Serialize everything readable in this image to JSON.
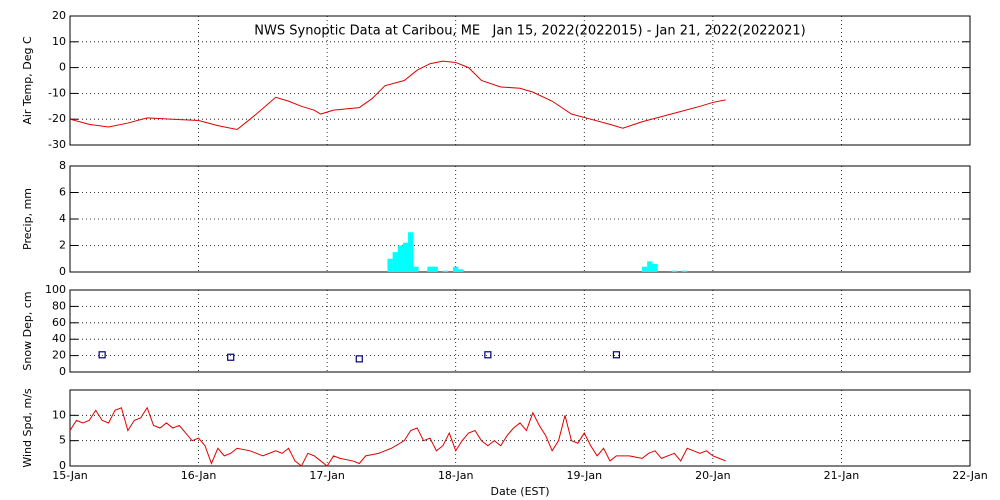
{
  "chart_data": [
    {
      "type": "line",
      "title": "NWS Synoptic Data at Caribou, ME   Jan 15, 2022(2022015) - Jan 21, 2022(2022021)",
      "ylabel": "Air Temp, Deg C",
      "color": "#e00000",
      "x": [
        15.0,
        15.15,
        15.3,
        15.45,
        15.6,
        15.8,
        16.0,
        16.15,
        16.3,
        16.45,
        16.6,
        16.7,
        16.8,
        16.9,
        16.95,
        17.05,
        17.25,
        17.35,
        17.45,
        17.6,
        17.7,
        17.8,
        17.9,
        18.0,
        18.1,
        18.2,
        18.35,
        18.5,
        18.6,
        18.75,
        18.9,
        19.05,
        19.2,
        19.3,
        19.45,
        19.6,
        19.75,
        19.9,
        20.0,
        20.1
      ],
      "values": [
        -20,
        -22,
        -23,
        -21.5,
        -19.5,
        -20,
        -20.5,
        -22.5,
        -24,
        -18,
        -11.5,
        -13,
        -15,
        -16.5,
        -18,
        -16.5,
        -15.5,
        -12,
        -7,
        -5,
        -1,
        1.5,
        2.5,
        2,
        0,
        -5,
        -7.5,
        -8,
        -9.5,
        -13,
        -18,
        -20,
        -22,
        -23.5,
        -21,
        -19,
        -17,
        -15,
        -13.5,
        -12.5
      ],
      "ylim": [
        -30,
        20
      ],
      "yticks": [
        -30,
        -20,
        -10,
        0,
        10,
        20
      ],
      "grid": true
    },
    {
      "type": "bar",
      "ylabel": "Precip, mm",
      "color": "#00ffff",
      "x": [
        17.49,
        17.53,
        17.57,
        17.61,
        17.65,
        17.69,
        17.8,
        17.84,
        17.92,
        18.0,
        18.04,
        19.47,
        19.51,
        19.55,
        19.7,
        19.78
      ],
      "values": [
        1.0,
        1.5,
        2.0,
        2.2,
        3.0,
        0.4,
        0.4,
        0.4,
        0.1,
        0.4,
        0.2,
        0.4,
        0.8,
        0.6,
        0.1,
        0.1
      ],
      "ylim": [
        0,
        8
      ],
      "yticks": [
        0,
        2,
        4,
        6,
        8
      ],
      "grid": true
    },
    {
      "type": "scatter",
      "ylabel": "Snow Dep, cm",
      "color": "#000080",
      "x": [
        15.25,
        16.25,
        17.25,
        18.25,
        19.25
      ],
      "values": [
        21,
        18,
        16,
        21,
        21
      ],
      "ylim": [
        0,
        100
      ],
      "yticks": [
        0,
        20,
        40,
        60,
        80,
        100
      ],
      "grid": true
    },
    {
      "type": "line",
      "ylabel": "Wind Spd, m/s",
      "xlabel": "Date (EST)",
      "color": "#e00000",
      "x": [
        15.0,
        15.05,
        15.1,
        15.15,
        15.2,
        15.25,
        15.3,
        15.35,
        15.4,
        15.45,
        15.5,
        15.55,
        15.6,
        15.65,
        15.7,
        15.75,
        15.8,
        15.85,
        15.9,
        15.95,
        16.0,
        16.05,
        16.1,
        16.15,
        16.2,
        16.25,
        16.3,
        16.4,
        16.5,
        16.6,
        16.65,
        16.7,
        16.75,
        16.8,
        16.85,
        16.9,
        16.95,
        17.0,
        17.05,
        17.1,
        17.2,
        17.25,
        17.3,
        17.4,
        17.5,
        17.6,
        17.65,
        17.7,
        17.75,
        17.8,
        17.85,
        17.9,
        17.95,
        18.0,
        18.05,
        18.1,
        18.15,
        18.2,
        18.25,
        18.3,
        18.35,
        18.4,
        18.45,
        18.5,
        18.55,
        18.6,
        18.65,
        18.7,
        18.75,
        18.8,
        18.85,
        18.9,
        18.95,
        19.0,
        19.05,
        19.1,
        19.15,
        19.2,
        19.25,
        19.35,
        19.45,
        19.5,
        19.55,
        19.6,
        19.7,
        19.75,
        19.8,
        19.85,
        19.9,
        19.95,
        20.0,
        20.05,
        20.1
      ],
      "values": [
        7,
        9,
        8.5,
        9,
        11,
        9,
        8.5,
        11,
        11.5,
        7,
        9,
        9.5,
        11.5,
        8,
        7.5,
        8.5,
        7.5,
        8,
        6.5,
        5,
        5.5,
        4,
        0.5,
        3.5,
        2,
        2.5,
        3.5,
        3,
        2,
        3,
        2.5,
        3.5,
        1,
        0,
        2.5,
        2,
        1,
        0,
        2,
        1.5,
        1,
        0.5,
        2,
        2.5,
        3.5,
        5,
        7,
        7.5,
        5,
        5.5,
        3,
        4,
        6.5,
        3,
        5,
        6.5,
        7,
        5,
        4,
        5,
        4,
        6,
        7.5,
        8.5,
        7,
        10.5,
        8,
        6,
        3,
        5,
        10,
        5,
        4.5,
        6.5,
        4,
        2,
        3.5,
        1,
        2,
        2,
        1.5,
        2.5,
        3,
        1.5,
        2.5,
        1,
        3.5,
        3,
        2.5,
        3,
        2,
        1.5,
        1
      ],
      "ylim": [
        0,
        15
      ],
      "yticks": [
        0,
        5,
        10
      ],
      "grid": true,
      "xlim": [
        15,
        22
      ],
      "xticks": [
        {
          "value": 15,
          "label": "15-Jan"
        },
        {
          "value": 16,
          "label": "16-Jan"
        },
        {
          "value": 17,
          "label": "17-Jan"
        },
        {
          "value": 18,
          "label": "18-Jan"
        },
        {
          "value": 19,
          "label": "19-Jan"
        },
        {
          "value": 20,
          "label": "20-Jan"
        },
        {
          "value": 21,
          "label": "21-Jan"
        },
        {
          "value": 22,
          "label": "22-Jan"
        }
      ]
    }
  ]
}
